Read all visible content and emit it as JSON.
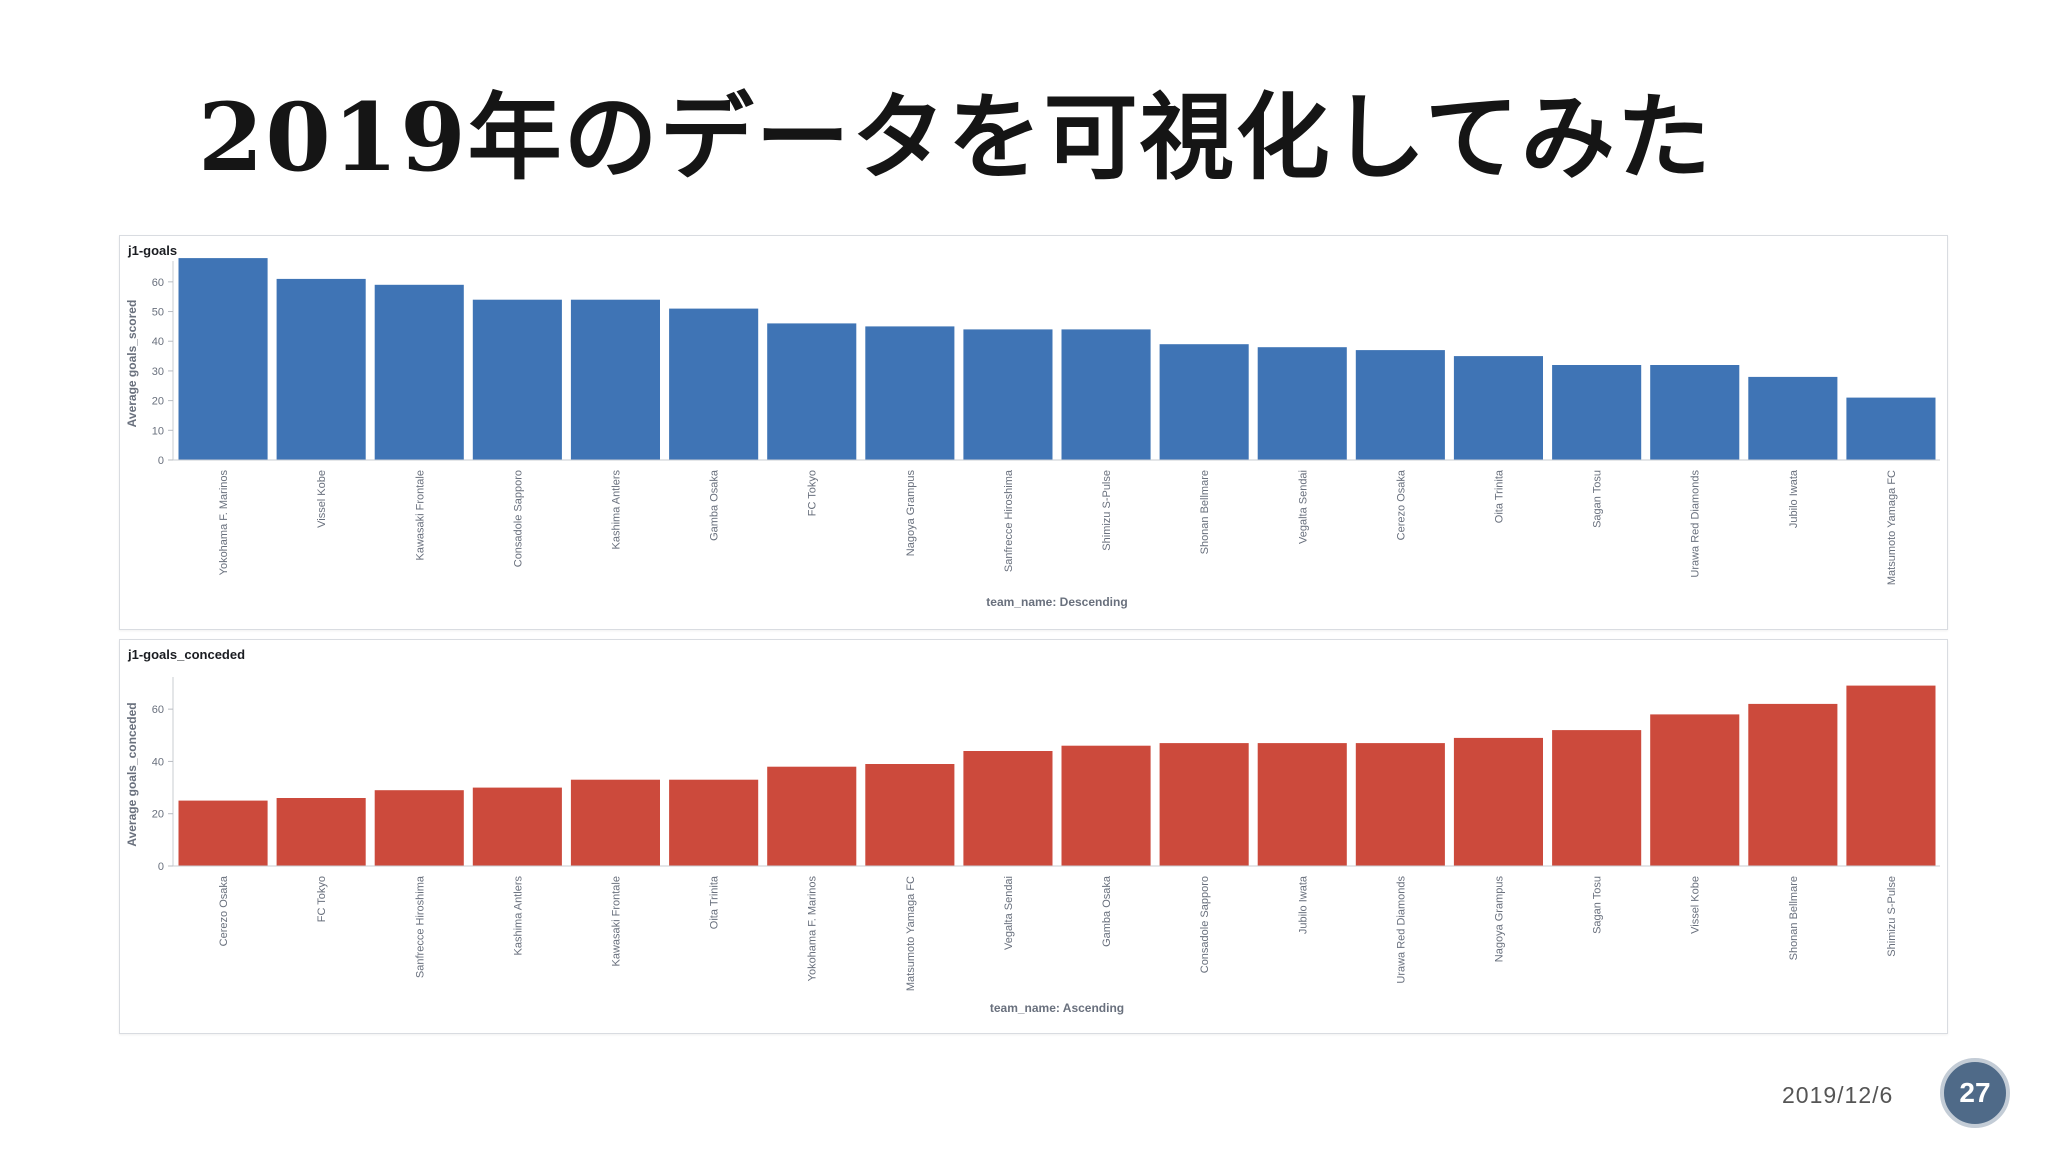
{
  "slide": {
    "title": "2019年のデータを可視化してみた",
    "date": "2019/12/6",
    "page_number": "27"
  },
  "chart_data": [
    {
      "type": "bar",
      "panel_title": "j1-goals",
      "ylabel": "Average goals_scored",
      "xlabel": "team_name: Descending",
      "color": "#3f74b5",
      "ylim": [
        0,
        65
      ],
      "yticks": [
        0,
        10,
        20,
        30,
        40,
        50,
        60
      ],
      "categories": [
        "Yokohama F. Marinos",
        "Vissel Kobe",
        "Kawasaki Frontale",
        "Consadole Sapporo",
        "Kashima Antlers",
        "Gamba Osaka",
        "FC Tokyo",
        "Nagoya Grampus",
        "Sanfrecce Hiroshima",
        "Shimizu S-Pulse",
        "Shonan Bellmare",
        "Vegalta Sendai",
        "Cerezo Osaka",
        "Oita Trinita",
        "Sagan Tosu",
        "Urawa Red Diamonds",
        "Jubilo Iwata",
        "Matsumoto Yamaga FC"
      ],
      "values": [
        68,
        61,
        59,
        54,
        54,
        51,
        46,
        45,
        44,
        44,
        39,
        38,
        37,
        35,
        32,
        32,
        28,
        21
      ]
    },
    {
      "type": "bar",
      "panel_title": "j1-goals_conceded",
      "ylabel": "Average goals_conceded",
      "xlabel": "team_name: Ascending",
      "color": "#cc4a3c",
      "ylim": [
        0,
        70
      ],
      "yticks": [
        0,
        20,
        40,
        60
      ],
      "categories": [
        "Cerezo Osaka",
        "FC Tokyo",
        "Sanfrecce Hiroshima",
        "Kashima Antlers",
        "Kawasaki Frontale",
        "Oita Trinita",
        "Yokohama F. Marinos",
        "Matsumoto Yamaga FC",
        "Vegalta Sendai",
        "Gamba Osaka",
        "Consadole Sapporo",
        "Jubilo Iwata",
        "Urawa Red Diamonds",
        "Nagoya Grampus",
        "Sagan Tosu",
        "Vissel Kobe",
        "Shonan Bellmare",
        "Shimizu S-Pulse"
      ],
      "values": [
        25,
        26,
        29,
        30,
        33,
        33,
        38,
        39,
        44,
        46,
        47,
        47,
        47,
        49,
        52,
        58,
        62,
        69
      ]
    }
  ]
}
